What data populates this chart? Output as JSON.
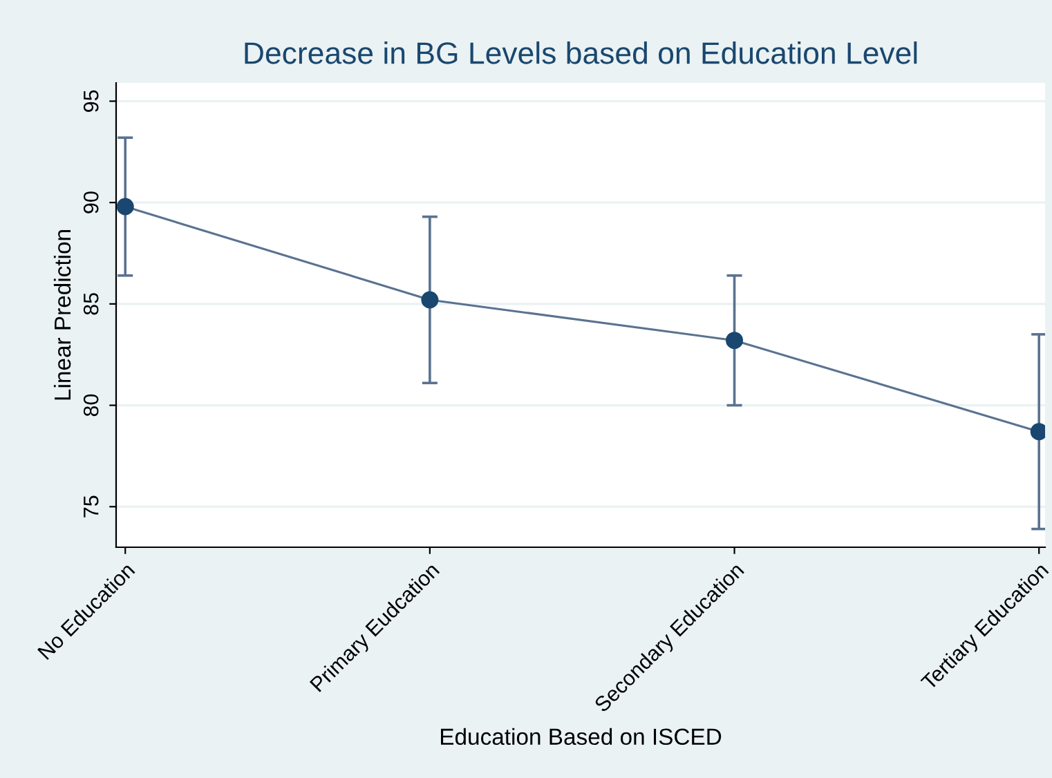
{
  "chart_data": {
    "type": "line",
    "title": "Decrease in BG Levels based on Education Level",
    "xlabel": "Education Based on ISCED",
    "ylabel": "Linear Prediction",
    "categories": [
      "No Education",
      "Primary Eudcation",
      "Secondary Education",
      "Tertiary Education"
    ],
    "series": [
      {
        "color": "#1a476f",
        "values": [
          89.8,
          85.2,
          83.2,
          78.7
        ],
        "errors": [
          [
            86.4,
            93.2
          ],
          [
            81.1,
            89.3
          ],
          [
            80.0,
            86.4
          ],
          [
            73.9,
            83.5
          ]
        ]
      }
    ],
    "ylim": [
      73.0,
      95.9
    ],
    "yticks": [
      75,
      80,
      85,
      90,
      95
    ],
    "grid": "y",
    "marker": "circle",
    "line_style": "solid"
  }
}
